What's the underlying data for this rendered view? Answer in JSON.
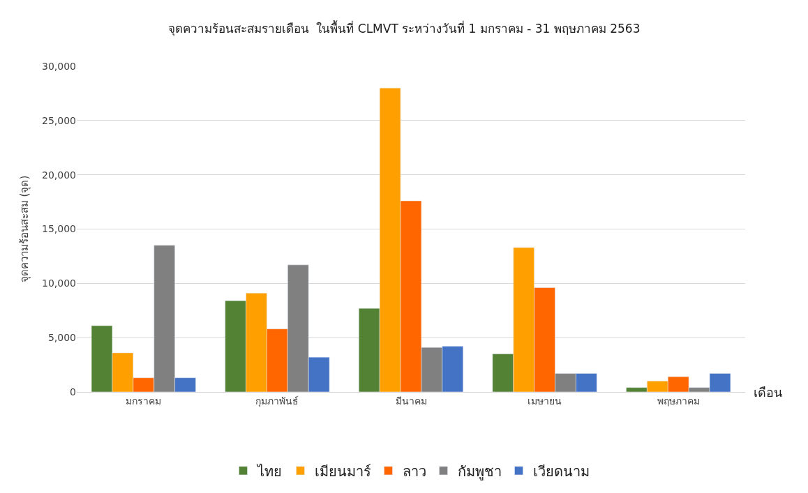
{
  "chart_data": {
    "type": "bar",
    "title": "จุดความร้อนสะสมรายเดือน  ในพื้นที่ CLMVT ระหว่างวันที่ 1 มกราคม - 31 พฤษภาคม 2563",
    "xlabel": "เดือน",
    "ylabel": "จุดความร้อนสะสม (จุด)",
    "categories": [
      "มกราคม",
      "กุมภาพันธ์",
      "มีนาคม",
      "เมษายน",
      "พฤษภาคม"
    ],
    "series": [
      {
        "name": "ไทย",
        "color": "#548235",
        "values": [
          6100,
          8400,
          7700,
          3500,
          400
        ]
      },
      {
        "name": "เมียนมาร์",
        "color": "#ffa000",
        "values": [
          3600,
          9100,
          28000,
          13300,
          1000
        ]
      },
      {
        "name": "ลาว",
        "color": "#ff6600",
        "values": [
          1300,
          5800,
          17600,
          9600,
          1400
        ]
      },
      {
        "name": "กัมพูชา",
        "color": "#808080",
        "values": [
          13500,
          11700,
          4100,
          1700,
          400
        ]
      },
      {
        "name": "เวียดนาม",
        "color": "#4472c4",
        "values": [
          1300,
          3200,
          4200,
          1700,
          1700
        ]
      }
    ],
    "ylim": [
      0,
      30000
    ],
    "yticks": [
      {
        "value": 0,
        "label": "0"
      },
      {
        "value": 5000,
        "label": "5,000"
      },
      {
        "value": 10000,
        "label": "10,000"
      },
      {
        "value": 15000,
        "label": "15,000"
      },
      {
        "value": 20000,
        "label": "20,000"
      },
      {
        "value": 25000,
        "label": "25,000"
      },
      {
        "value": 30000,
        "label": "30,000"
      }
    ],
    "grid": "y",
    "legend": "bottom"
  }
}
